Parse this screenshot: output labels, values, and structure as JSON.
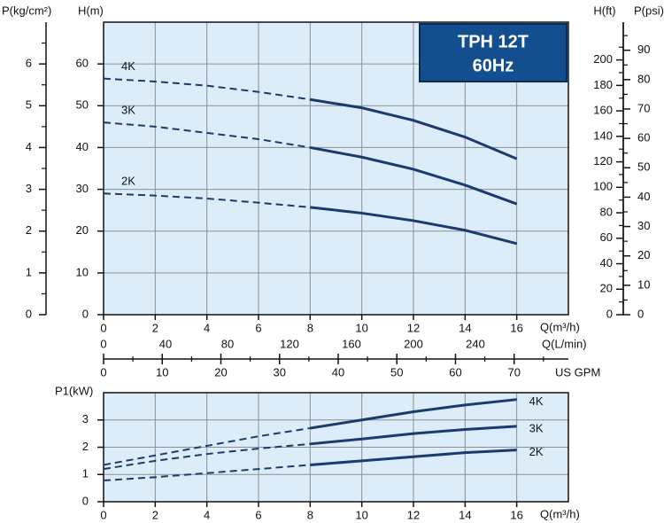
{
  "chart_data": [
    {
      "type": "line",
      "title": "TPH 12T",
      "subtitle": "60Hz",
      "xlabel": "Q(m³/h)",
      "ylabel": "H(m)",
      "x": [
        0,
        2,
        4,
        6,
        8,
        10,
        12,
        14,
        16
      ],
      "xlim": [
        0,
        18
      ],
      "ylim": [
        0,
        70
      ],
      "xticks": [
        0,
        2,
        4,
        6,
        8,
        10,
        12,
        14,
        16
      ],
      "yticks": [
        0,
        10,
        20,
        30,
        40,
        50,
        60
      ],
      "grid": true,
      "dashed_until": 8,
      "series": [
        {
          "name": "4K",
          "color": "#1b3a6e",
          "values": [
            56.5,
            55.8,
            54.8,
            53.3,
            51.5,
            49.5,
            46.5,
            42.5,
            37.3
          ]
        },
        {
          "name": "3K",
          "color": "#1b3a6e",
          "values": [
            46,
            45,
            43.5,
            42,
            40,
            37.7,
            34.8,
            31,
            26.5
          ]
        },
        {
          "name": "2K",
          "color": "#1b3a6e",
          "values": [
            29,
            28.5,
            27.8,
            26.8,
            25.7,
            24.3,
            22.5,
            20.2,
            17
          ]
        }
      ],
      "axes": [
        {
          "label": "P(kg/cm²)",
          "position": "left",
          "lim": [
            0,
            7
          ],
          "ticks": [
            0,
            1,
            2,
            3,
            4,
            5,
            6
          ],
          "minor_ticks": [
            0.5,
            1.5,
            2.5,
            3.5,
            4.5,
            5.5,
            6.5
          ]
        },
        {
          "label": "H(ft)",
          "position": "right",
          "lim": [
            0,
            229.66
          ],
          "ticks": [
            0,
            20,
            40,
            60,
            80,
            100,
            120,
            140,
            160,
            180,
            200
          ],
          "minor_ticks": [
            10,
            30,
            50,
            70,
            90,
            110,
            130,
            150,
            170,
            190,
            210
          ]
        },
        {
          "label": "P(psi)",
          "position": "right",
          "lim": [
            0,
            99.56
          ],
          "ticks": [
            0,
            10,
            20,
            30,
            40,
            50,
            60,
            70,
            80,
            90
          ],
          "minor_ticks": [
            5,
            15,
            25,
            35,
            45,
            55,
            65,
            75,
            85,
            95
          ]
        },
        {
          "label": "Q(L/min)",
          "position": "bottom",
          "lim": [
            0,
            300
          ],
          "ticks": [
            0,
            40,
            80,
            120,
            160,
            200,
            240
          ]
        },
        {
          "label": "US GPM",
          "position": "bottom",
          "lim": [
            0,
            79.25
          ],
          "ticks": [
            0,
            10,
            20,
            30,
            40,
            50,
            60,
            70
          ],
          "minor_ticks": [
            5,
            15,
            25,
            35,
            45,
            55,
            65,
            75
          ]
        }
      ]
    },
    {
      "type": "line",
      "xlabel": "Q(m³/h)",
      "ylabel": "P1(kW)",
      "x": [
        0,
        2,
        4,
        6,
        8,
        10,
        12,
        14,
        16
      ],
      "xlim": [
        0,
        18
      ],
      "ylim": [
        0,
        4
      ],
      "xticks": [
        0,
        2,
        4,
        6,
        8,
        10,
        12,
        14,
        16
      ],
      "yticks": [
        0,
        1,
        2,
        3
      ],
      "grid": true,
      "dashed_until": 8,
      "series": [
        {
          "name": "4K",
          "color": "#1b3a6e",
          "values": [
            1.35,
            1.7,
            2.05,
            2.4,
            2.7,
            3.0,
            3.3,
            3.55,
            3.75
          ]
        },
        {
          "name": "3K",
          "color": "#1b3a6e",
          "values": [
            1.2,
            1.5,
            1.75,
            1.95,
            2.12,
            2.3,
            2.5,
            2.65,
            2.77
          ]
        },
        {
          "name": "2K",
          "color": "#1b3a6e",
          "values": [
            0.78,
            0.9,
            1.05,
            1.2,
            1.35,
            1.5,
            1.65,
            1.8,
            1.9
          ]
        }
      ]
    }
  ]
}
